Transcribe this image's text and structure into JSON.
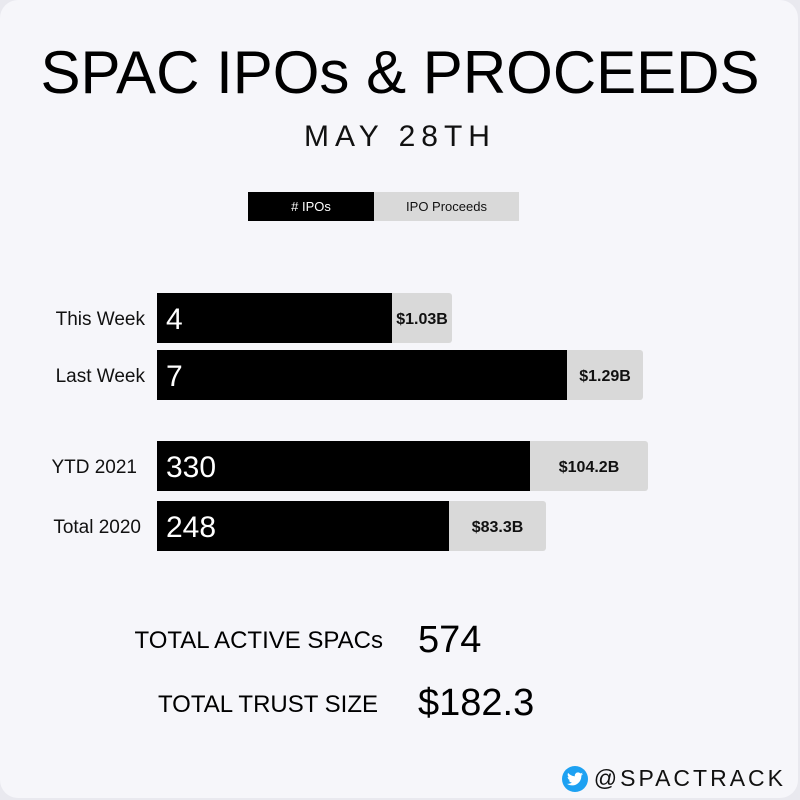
{
  "title": "SPAC IPOs & PROCEEDS",
  "subtitle": "MAY 28TH",
  "legend": {
    "ipos": "# IPOs",
    "proceeds": "IPO Proceeds"
  },
  "chart_data": {
    "type": "bar",
    "orientation": "horizontal",
    "stacked": true,
    "categories": [
      "This Week",
      "Last Week",
      "YTD 2021",
      "Total 2020"
    ],
    "series": [
      {
        "name": "# IPOs",
        "values": [
          4,
          7,
          330,
          248
        ],
        "labels": [
          "4",
          "7",
          "330",
          "248"
        ],
        "color": "#000000"
      },
      {
        "name": "IPO Proceeds",
        "values": [
          1.03,
          1.29,
          104.2,
          83.3
        ],
        "labels": [
          "$1.03B",
          "$1.29B",
          "$104.2B",
          "$83.3B"
        ],
        "color": "#d9d9d9"
      }
    ]
  },
  "stats": {
    "active_label": "TOTAL ACTIVE SPACs",
    "active_value": "574",
    "trust_label": "TOTAL TRUST SIZE",
    "trust_value": "$182.3"
  },
  "handle": "@SPACTRACK",
  "colors": {
    "twitter": "#1da1f2",
    "ipos": "#000000",
    "proceeds": "#d9d9d9"
  }
}
